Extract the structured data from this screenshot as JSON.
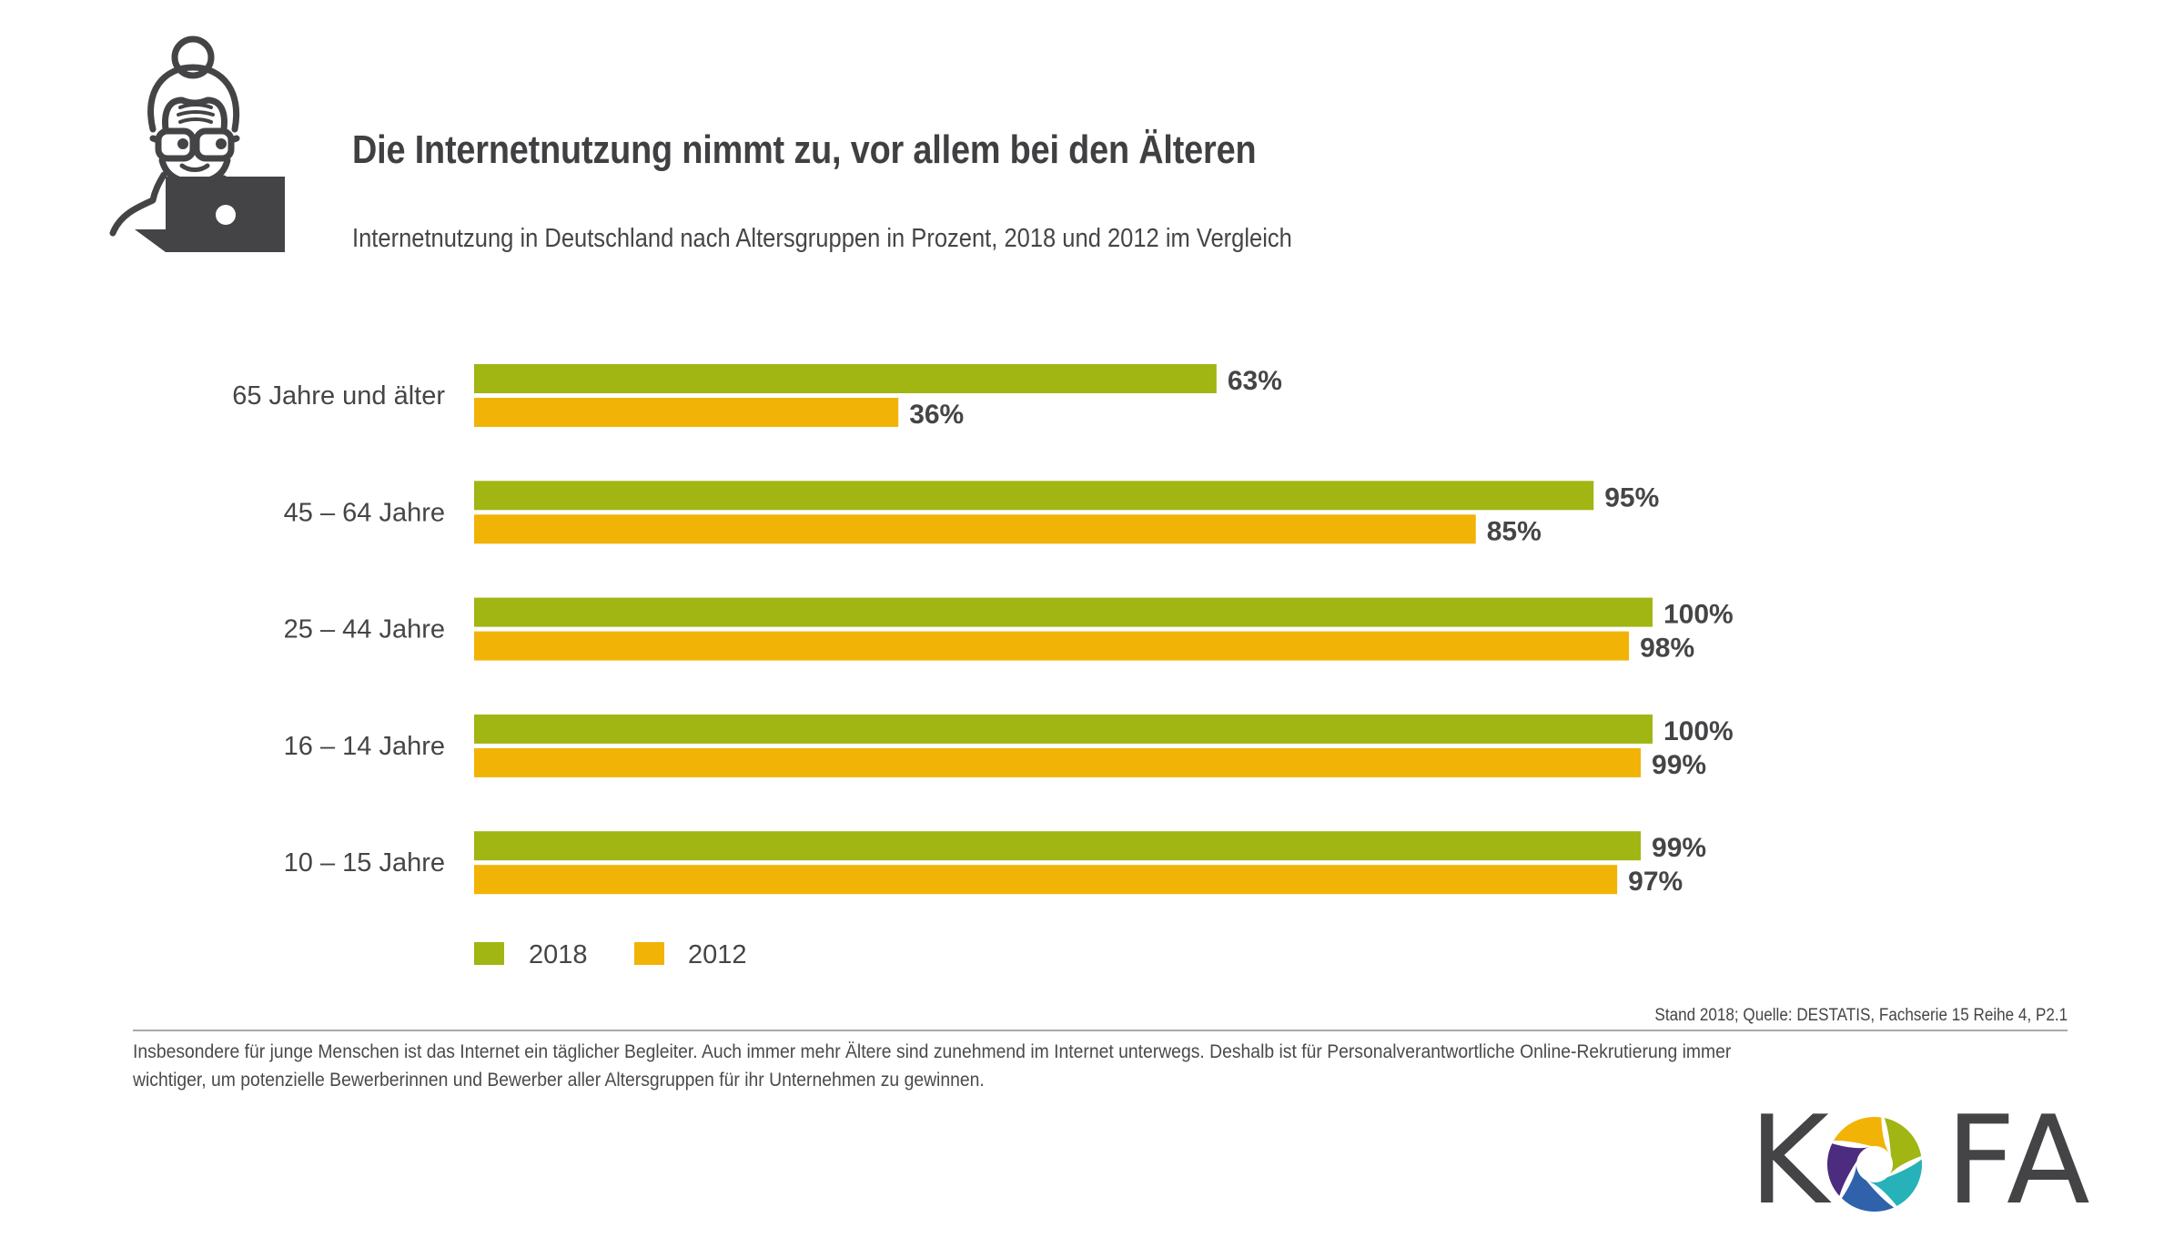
{
  "header": {
    "title": "Die Internetnutzung nimmt zu, vor allem bei den Älteren",
    "subtitle": "Internetnutzung in Deutschland nach Altersgruppen in Prozent, 2018 und 2012 im Vergleich"
  },
  "colors": {
    "series_2018": "#A1B513",
    "series_2012": "#F2B307",
    "text": "#454547",
    "icon": "#444446"
  },
  "chart_data": {
    "type": "bar",
    "orientation": "horizontal",
    "title": "Die Internetnutzung nimmt zu, vor allem bei den Älteren",
    "subtitle": "Internetnutzung in Deutschland nach Altersgruppen in Prozent, 2018 und 2012 im Vergleich",
    "xlabel": "",
    "ylabel": "",
    "xlim": [
      0,
      100
    ],
    "grid": false,
    "legend_position": "bottom-left",
    "categories": [
      "65 Jahre und älter",
      "45 – 64 Jahre",
      "25 – 44 Jahre",
      "16 – 14 Jahre",
      "10 – 15 Jahre"
    ],
    "series": [
      {
        "name": "2018",
        "color": "#A1B513",
        "values": [
          63,
          95,
          100,
          100,
          99
        ],
        "labels": [
          "63%",
          "95%",
          "100%",
          "100%",
          "99%"
        ]
      },
      {
        "name": "2012",
        "color": "#F2B307",
        "values": [
          36,
          85,
          98,
          99,
          97
        ],
        "labels": [
          "36%",
          "85%",
          "98%",
          "99%",
          "97%"
        ]
      }
    ]
  },
  "footer": {
    "source": "Stand 2018; Quelle: DESTATIS, Fachserie 15 Reihe 4, P2.1",
    "note_lines": [
      "Insbesondere für junge Menschen ist das Internet ein täglicher Begleiter. Auch immer mehr Ältere sind zunehmend im Internet unterwegs. Deshalb ist für Personalverantwortliche Online-Rekrutierung  immer",
      "wichtiger, um potenzielle Bewerberinnen und Bewerber aller Altersgruppen für ihr Unternehmen zu gewinnen."
    ]
  },
  "logo": {
    "letters": [
      "K",
      "F",
      "A"
    ],
    "swirl_colors": [
      "#F2B307",
      "#A1B513",
      "#26B2B8",
      "#2F62AB",
      "#4B2C7E"
    ]
  },
  "mascot": {
    "icon": "senior-woman-laptop-icon"
  }
}
